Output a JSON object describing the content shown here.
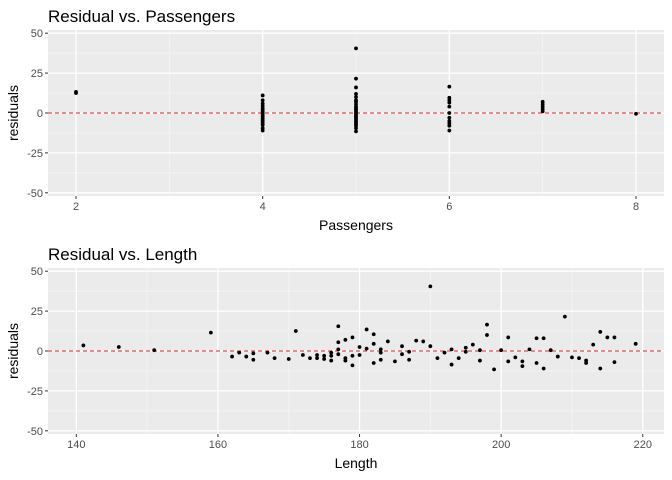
{
  "chart_data": [
    {
      "type": "scatter",
      "title": "Residual vs. Passengers",
      "xlabel": "Passengers",
      "ylabel": "residuals",
      "xlim": [
        1.7,
        8.3
      ],
      "ylim": [
        -52,
        52
      ],
      "xticks": [
        2,
        4,
        6,
        8
      ],
      "yticks": [
        -50,
        -25,
        0,
        25,
        50
      ],
      "reference_line": {
        "y": 0,
        "style": "dashed",
        "color": "#d62728"
      },
      "panel_background": "#ebebeb",
      "grid": true,
      "points": [
        [
          2,
          12.5
        ],
        [
          2,
          13.2
        ],
        [
          4,
          11
        ],
        [
          4,
          8
        ],
        [
          4,
          6
        ],
        [
          4,
          4.5
        ],
        [
          4,
          3
        ],
        [
          4,
          2
        ],
        [
          4,
          1
        ],
        [
          4,
          0
        ],
        [
          4,
          -0.5
        ],
        [
          4,
          -1.5
        ],
        [
          4,
          -2.5
        ],
        [
          4,
          -3.5
        ],
        [
          4,
          -4.5
        ],
        [
          4,
          -5.5
        ],
        [
          4,
          -6.5
        ],
        [
          4,
          -7.5
        ],
        [
          4,
          -9.5
        ],
        [
          4,
          -11
        ],
        [
          5,
          40.5
        ],
        [
          5,
          21.5
        ],
        [
          5,
          16
        ],
        [
          5,
          12
        ],
        [
          5,
          10
        ],
        [
          5,
          8
        ],
        [
          5,
          7
        ],
        [
          5,
          5.5
        ],
        [
          5,
          4
        ],
        [
          5,
          3
        ],
        [
          5,
          2
        ],
        [
          5,
          1
        ],
        [
          5,
          0
        ],
        [
          5,
          -1
        ],
        [
          5,
          -2
        ],
        [
          5,
          -3
        ],
        [
          5,
          -4
        ],
        [
          5,
          -5
        ],
        [
          5,
          -6
        ],
        [
          5,
          -7
        ],
        [
          5,
          -8
        ],
        [
          5,
          -9.5
        ],
        [
          5,
          -11.5
        ],
        [
          6,
          16.5
        ],
        [
          6,
          9.5
        ],
        [
          6,
          8
        ],
        [
          6,
          6.5
        ],
        [
          6,
          4
        ],
        [
          6,
          0
        ],
        [
          6,
          -3
        ],
        [
          6,
          -5
        ],
        [
          6,
          -6.5
        ],
        [
          6,
          -8
        ],
        [
          6,
          -11
        ],
        [
          7,
          7
        ],
        [
          7,
          5.5
        ],
        [
          7,
          4
        ],
        [
          7,
          2.5
        ],
        [
          7,
          1
        ],
        [
          8,
          -0.5
        ]
      ]
    },
    {
      "type": "scatter",
      "title": "Residual vs. Length",
      "xlabel": "Length",
      "ylabel": "residuals",
      "xlim": [
        136,
        223
      ],
      "ylim": [
        -52,
        52
      ],
      "xticks": [
        140,
        160,
        180,
        200,
        220
      ],
      "yticks": [
        -50,
        -25,
        0,
        25,
        50
      ],
      "reference_line": {
        "y": 0,
        "style": "dashed",
        "color": "#d62728"
      },
      "panel_background": "#ebebeb",
      "grid": true,
      "points": [
        [
          141,
          3.5
        ],
        [
          146,
          2.5
        ],
        [
          151,
          0.5
        ],
        [
          159,
          11.5
        ],
        [
          162,
          -3.5
        ],
        [
          163,
          -1
        ],
        [
          164,
          -3.5
        ],
        [
          165,
          -5.5
        ],
        [
          165,
          -1.5
        ],
        [
          167,
          -1
        ],
        [
          168,
          -4.5
        ],
        [
          170,
          -5
        ],
        [
          171,
          12.5
        ],
        [
          172,
          -2.5
        ],
        [
          173,
          -4.5
        ],
        [
          174,
          -4.5
        ],
        [
          174,
          -2.5
        ],
        [
          175,
          -3
        ],
        [
          175,
          -5
        ],
        [
          176,
          -6
        ],
        [
          176,
          -3
        ],
        [
          176,
          -1
        ],
        [
          177,
          15.5
        ],
        [
          177,
          5.5
        ],
        [
          177,
          1
        ],
        [
          177,
          -2
        ],
        [
          178,
          7
        ],
        [
          178,
          -4.5
        ],
        [
          178,
          -6
        ],
        [
          179,
          8.5
        ],
        [
          179,
          -9
        ],
        [
          179,
          -3
        ],
        [
          180,
          2.5
        ],
        [
          180,
          -2.5
        ],
        [
          181,
          13.5
        ],
        [
          181,
          1.5
        ],
        [
          182,
          -7.5
        ],
        [
          182,
          4.5
        ],
        [
          182,
          10.5
        ],
        [
          183,
          -1
        ],
        [
          183,
          1
        ],
        [
          183,
          -5.5
        ],
        [
          184,
          6
        ],
        [
          185,
          -6.5
        ],
        [
          186,
          -2
        ],
        [
          186,
          3
        ],
        [
          187,
          -5.5
        ],
        [
          187,
          -0.5
        ],
        [
          188,
          6.5
        ],
        [
          189,
          6
        ],
        [
          190,
          40.5
        ],
        [
          190,
          3
        ],
        [
          191,
          -4.5
        ],
        [
          192,
          -1
        ],
        [
          193,
          -8.5
        ],
        [
          193,
          1
        ],
        [
          194,
          -4.5
        ],
        [
          195,
          2
        ],
        [
          195,
          -0.5
        ],
        [
          196,
          4
        ],
        [
          197,
          -6
        ],
        [
          197,
          0.5
        ],
        [
          198,
          16.5
        ],
        [
          198,
          10
        ],
        [
          199,
          -11.5
        ],
        [
          200,
          0.5
        ],
        [
          201,
          8.5
        ],
        [
          201,
          -6.5
        ],
        [
          202,
          -4
        ],
        [
          203,
          -9.5
        ],
        [
          204,
          1
        ],
        [
          205,
          -7.5
        ],
        [
          206,
          -11
        ],
        [
          207,
          0.5
        ],
        [
          208,
          -3.5
        ],
        [
          209,
          21.5
        ],
        [
          210,
          -4
        ],
        [
          211,
          -4.5
        ],
        [
          212,
          -6
        ],
        [
          213,
          4
        ],
        [
          214,
          12
        ],
        [
          215,
          8.5
        ],
        [
          216,
          8.5
        ],
        [
          212,
          -7.5
        ],
        [
          214,
          -11
        ],
        [
          216,
          -7
        ],
        [
          219,
          4.5
        ],
        [
          203,
          -6.5
        ],
        [
          205,
          8
        ],
        [
          206,
          8
        ]
      ]
    }
  ]
}
